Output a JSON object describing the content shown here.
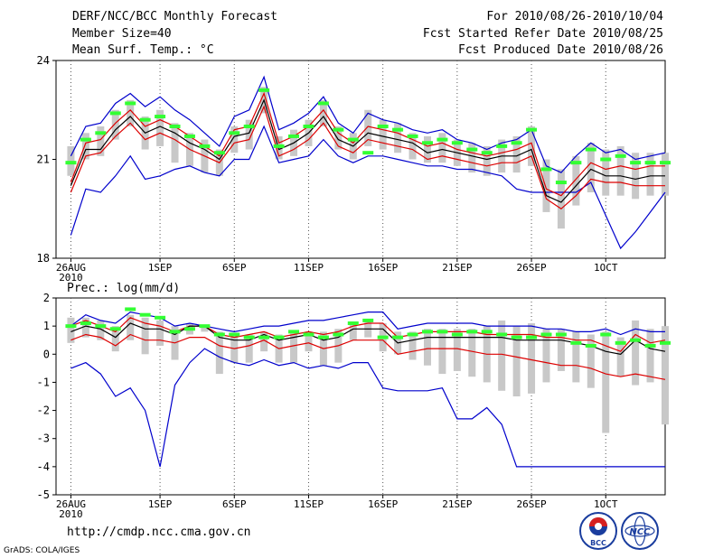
{
  "header": {
    "title": "DERF/NCC/BCC Monthly Forecast",
    "member_size": "Member Size=40",
    "variable": "Mean Surf. Temp.: °C",
    "period": "For 2010/08/26-2010/10/04",
    "started": "Fcst Started Refer Date 2010/08/25",
    "produced": "Fcst Produced Date 2010/08/26"
  },
  "footer": {
    "url": "http://cmdp.ncc.cma.gov.cn",
    "grads": "GrADS: COLA/IGES",
    "logo_bcc_text": "BCC",
    "logo_ncc_text": "NCC"
  },
  "colors": {
    "box": "#c8c8c8",
    "median": "#33ff33",
    "max_min": "#0000cc",
    "mean": "#000000",
    "mean_minus": "#dd0000"
  },
  "chart_data": [
    {
      "type": "line",
      "title": "Mean Surf. Temp.: °C",
      "x_tick_labels": [
        "26AUG\n2010",
        "1SEP",
        "6SEP",
        "11SEP",
        "16SEP",
        "21SEP",
        "26SEP",
        "1OCT"
      ],
      "x_tick_days": [
        1,
        7,
        12,
        17,
        22,
        27,
        32,
        37
      ],
      "xlim": [
        0,
        41
      ],
      "ylim": [
        18,
        24
      ],
      "y_ticks": [
        18,
        21,
        24
      ],
      "series": [
        {
          "name": "max",
          "values": [
            21.1,
            22.0,
            22.1,
            22.7,
            23.0,
            22.6,
            22.9,
            22.5,
            22.2,
            21.8,
            21.4,
            22.3,
            22.5,
            23.5,
            21.9,
            22.1,
            22.4,
            22.9,
            22.1,
            21.8,
            22.4,
            22.2,
            22.1,
            21.9,
            21.8,
            21.9,
            21.6,
            21.5,
            21.3,
            21.5,
            21.6,
            21.9,
            20.8,
            20.6,
            21.1,
            21.5,
            21.2,
            21.3,
            21.0,
            21.1,
            21.2
          ]
        },
        {
          "name": "mean_plus",
          "values": [
            20.3,
            21.5,
            21.6,
            22.1,
            22.5,
            22.0,
            22.2,
            22.0,
            21.7,
            21.4,
            21.1,
            21.9,
            22.0,
            23.0,
            21.5,
            21.7,
            22.0,
            22.5,
            21.8,
            21.5,
            22.0,
            21.9,
            21.8,
            21.6,
            21.4,
            21.5,
            21.3,
            21.2,
            21.1,
            21.2,
            21.3,
            21.5,
            20.1,
            19.9,
            20.4,
            20.9,
            20.7,
            20.8,
            20.7,
            20.8,
            20.8
          ]
        },
        {
          "name": "mean",
          "values": [
            20.2,
            21.3,
            21.3,
            21.9,
            22.3,
            21.8,
            22.0,
            21.8,
            21.5,
            21.3,
            21.0,
            21.7,
            21.8,
            22.8,
            21.3,
            21.5,
            21.8,
            22.3,
            21.6,
            21.4,
            21.8,
            21.7,
            21.6,
            21.5,
            21.2,
            21.3,
            21.2,
            21.1,
            21.0,
            21.1,
            21.1,
            21.3,
            19.9,
            19.7,
            20.2,
            20.7,
            20.5,
            20.5,
            20.4,
            20.5,
            20.5
          ]
        },
        {
          "name": "mean_minus",
          "values": [
            20.0,
            21.1,
            21.2,
            21.7,
            22.1,
            21.6,
            21.8,
            21.6,
            21.3,
            21.1,
            20.9,
            21.5,
            21.6,
            22.6,
            21.1,
            21.3,
            21.6,
            22.1,
            21.4,
            21.2,
            21.6,
            21.5,
            21.4,
            21.3,
            21.0,
            21.1,
            21.0,
            20.9,
            20.8,
            20.9,
            20.9,
            21.1,
            19.8,
            19.5,
            19.9,
            20.4,
            20.3,
            20.3,
            20.2,
            20.2,
            20.2
          ]
        },
        {
          "name": "min",
          "values": [
            18.7,
            20.1,
            20.0,
            20.5,
            21.1,
            20.4,
            20.5,
            20.7,
            20.8,
            20.6,
            20.5,
            21.0,
            21.0,
            22.0,
            20.9,
            21.0,
            21.1,
            21.6,
            21.1,
            20.9,
            21.1,
            21.1,
            21.0,
            20.9,
            20.8,
            20.8,
            20.7,
            20.7,
            20.6,
            20.5,
            20.1,
            20.0,
            20.0,
            20.0,
            20.0,
            20.3,
            19.3,
            18.3,
            18.8,
            19.4,
            20.0
          ]
        },
        {
          "name": "median",
          "values": [
            20.9,
            21.6,
            21.8,
            22.4,
            22.7,
            22.2,
            22.3,
            22.0,
            21.7,
            21.4,
            21.2,
            21.8,
            22.0,
            23.1,
            21.4,
            21.7,
            22.0,
            22.7,
            21.9,
            21.6,
            21.2,
            22.0,
            21.9,
            21.7,
            21.5,
            21.6,
            21.5,
            21.3,
            21.2,
            21.4,
            21.5,
            21.9,
            20.7,
            20.3,
            20.9,
            21.3,
            21.0,
            21.1,
            20.9,
            20.9,
            20.9
          ]
        },
        {
          "name": "box_high",
          "values": [
            21.4,
            21.8,
            22.0,
            22.5,
            22.8,
            22.3,
            22.5,
            22.1,
            21.8,
            21.6,
            21.3,
            22.0,
            22.2,
            23.2,
            21.7,
            21.9,
            22.2,
            22.8,
            22.0,
            21.8,
            22.5,
            22.2,
            22.1,
            21.8,
            21.7,
            21.8,
            21.6,
            21.5,
            21.4,
            21.6,
            21.7,
            22.0,
            21.0,
            20.7,
            21.1,
            21.5,
            21.3,
            21.4,
            21.2,
            21.2,
            21.2
          ]
        },
        {
          "name": "box_low",
          "values": [
            20.5,
            21.0,
            21.1,
            21.6,
            22.0,
            21.3,
            21.4,
            20.9,
            20.8,
            20.6,
            20.5,
            21.2,
            21.3,
            22.4,
            21.0,
            21.1,
            21.4,
            22.0,
            21.3,
            21.0,
            21.4,
            21.3,
            21.2,
            21.0,
            20.9,
            20.9,
            20.8,
            20.6,
            20.5,
            20.6,
            20.6,
            20.8,
            19.4,
            18.9,
            19.6,
            20.0,
            19.9,
            19.9,
            19.8,
            19.9,
            19.9
          ]
        }
      ]
    },
    {
      "type": "line",
      "title": "Prec.: log(mm/d)",
      "x_tick_labels": [
        "26AUG\n2010",
        "1SEP",
        "6SEP",
        "11SEP",
        "16SEP",
        "21SEP",
        "26SEP",
        "1OCT"
      ],
      "x_tick_days": [
        1,
        7,
        12,
        17,
        22,
        27,
        32,
        37
      ],
      "xlim": [
        0,
        41
      ],
      "ylim": [
        -5,
        2
      ],
      "y_ticks": [
        -5,
        -4,
        -3,
        -2,
        -1,
        0,
        1,
        2
      ],
      "series": [
        {
          "name": "max",
          "values": [
            1.0,
            1.4,
            1.2,
            1.1,
            1.5,
            1.4,
            1.3,
            1.0,
            1.1,
            1.0,
            0.9,
            0.8,
            0.9,
            1.0,
            1.0,
            1.1,
            1.2,
            1.2,
            1.3,
            1.4,
            1.5,
            1.5,
            0.9,
            1.0,
            1.1,
            1.1,
            1.1,
            1.1,
            1.0,
            1.0,
            1.0,
            1.0,
            0.9,
            0.9,
            0.8,
            0.8,
            0.9,
            0.7,
            0.9,
            0.8,
            0.8
          ]
        },
        {
          "name": "mean_plus",
          "values": [
            1.0,
            1.2,
            1.0,
            0.8,
            1.3,
            1.1,
            1.0,
            0.8,
            1.0,
            1.0,
            0.7,
            0.6,
            0.7,
            0.8,
            0.6,
            0.7,
            0.8,
            0.7,
            0.8,
            1.0,
            1.1,
            1.1,
            0.6,
            0.7,
            0.8,
            0.8,
            0.8,
            0.8,
            0.7,
            0.7,
            0.7,
            0.7,
            0.6,
            0.6,
            0.5,
            0.5,
            0.3,
            0.1,
            0.7,
            0.4,
            0.5
          ]
        },
        {
          "name": "mean",
          "values": [
            0.8,
            1.0,
            0.9,
            0.6,
            1.1,
            0.9,
            0.9,
            0.7,
            1.0,
            1.0,
            0.6,
            0.5,
            0.5,
            0.7,
            0.5,
            0.6,
            0.7,
            0.5,
            0.6,
            0.9,
            0.9,
            0.9,
            0.4,
            0.5,
            0.6,
            0.6,
            0.6,
            0.6,
            0.6,
            0.6,
            0.5,
            0.5,
            0.5,
            0.5,
            0.4,
            0.3,
            0.1,
            0.0,
            0.5,
            0.2,
            0.1
          ]
        },
        {
          "name": "mean_minus",
          "values": [
            0.5,
            0.7,
            0.6,
            0.3,
            0.7,
            0.5,
            0.5,
            0.4,
            0.6,
            0.6,
            0.3,
            0.2,
            0.3,
            0.5,
            0.2,
            0.3,
            0.4,
            0.2,
            0.3,
            0.5,
            0.5,
            0.5,
            0.0,
            0.1,
            0.2,
            0.2,
            0.2,
            0.1,
            0.0,
            0.0,
            -0.1,
            -0.2,
            -0.3,
            -0.4,
            -0.4,
            -0.5,
            -0.7,
            -0.8,
            -0.7,
            -0.8,
            -0.9
          ]
        },
        {
          "name": "min",
          "values": [
            -0.5,
            -0.3,
            -0.7,
            -1.5,
            -1.2,
            -2.0,
            -4.0,
            -1.1,
            -0.3,
            0.2,
            -0.1,
            -0.3,
            -0.4,
            -0.2,
            -0.4,
            -0.3,
            -0.5,
            -0.4,
            -0.5,
            -0.3,
            -0.3,
            -1.2,
            -1.3,
            -1.3,
            -1.3,
            -1.2,
            -2.3,
            -2.3,
            -1.9,
            -2.5,
            -4.0,
            -4.0,
            -4.0,
            -4.0,
            -4.0,
            -4.0,
            -4.0,
            -4.0,
            -4.0,
            -4.0,
            -4.0
          ]
        },
        {
          "name": "median",
          "values": [
            1.0,
            1.1,
            1.0,
            0.9,
            1.6,
            1.4,
            1.3,
            0.8,
            0.9,
            1.0,
            0.7,
            0.7,
            0.6,
            0.6,
            0.6,
            0.8,
            0.7,
            0.6,
            0.7,
            1.1,
            1.2,
            0.6,
            0.6,
            0.7,
            0.8,
            0.8,
            0.7,
            0.8,
            0.8,
            0.7,
            0.6,
            0.6,
            0.7,
            0.7,
            0.4,
            0.3,
            0.7,
            0.4,
            0.5,
            0.3,
            0.4
          ]
        },
        {
          "name": "box_high",
          "values": [
            1.3,
            1.3,
            1.2,
            1.0,
            1.4,
            1.3,
            1.2,
            1.0,
            1.1,
            1.0,
            0.8,
            0.7,
            0.7,
            0.8,
            0.7,
            0.8,
            0.8,
            0.8,
            0.9,
            1.1,
            1.2,
            1.1,
            0.8,
            0.8,
            0.9,
            0.9,
            0.9,
            0.9,
            1.0,
            1.2,
            1.0,
            1.1,
            0.9,
            0.9,
            0.8,
            0.7,
            0.8,
            0.6,
            1.2,
            0.9,
            1.0
          ]
        },
        {
          "name": "box_low",
          "values": [
            0.4,
            0.6,
            0.5,
            0.1,
            0.5,
            0.0,
            0.3,
            -0.2,
            0.7,
            0.8,
            -0.7,
            -0.3,
            -0.3,
            0.1,
            -0.3,
            -0.3,
            0.1,
            -0.4,
            -0.3,
            0.5,
            0.6,
            0.1,
            0.0,
            -0.2,
            -0.4,
            -0.7,
            -0.6,
            -0.8,
            -1.0,
            -1.3,
            -1.5,
            -1.4,
            -1.0,
            -0.6,
            -1.0,
            -1.2,
            -2.8,
            -0.8,
            -1.1,
            -1.0,
            -2.5
          ]
        }
      ]
    }
  ]
}
